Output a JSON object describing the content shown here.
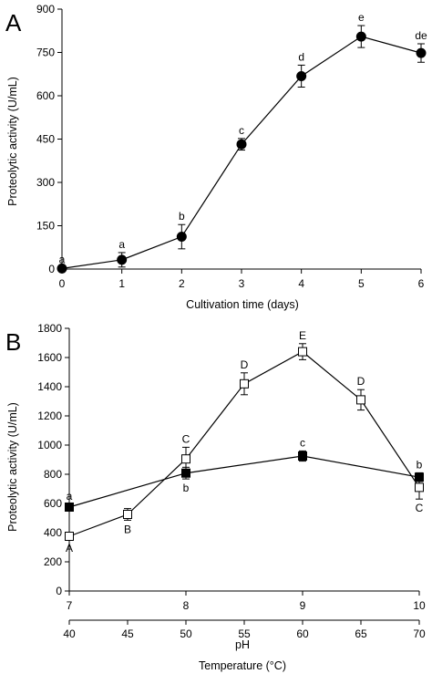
{
  "chart_data": [
    {
      "panel_label": "A",
      "type": "line",
      "xlabel": "Cultivation time (days)",
      "ylabel": "Proteolytic activity (U/mL)",
      "xlim": [
        0,
        6
      ],
      "ylim": [
        0,
        900
      ],
      "x_ticks": [
        "0",
        "1",
        "2",
        "3",
        "4",
        "5",
        "6"
      ],
      "y_ticks": [
        "0",
        "150",
        "300",
        "450",
        "600",
        "750",
        "900"
      ],
      "grid": false,
      "legend": "none",
      "series": [
        {
          "marker": "filled-circle",
          "color": "#000000",
          "points": [
            {
              "x": 0,
              "y": 2,
              "err": 3,
              "label": "a"
            },
            {
              "x": 1,
              "y": 32,
              "err": 25,
              "label": "a"
            },
            {
              "x": 2,
              "y": 112,
              "err": 42,
              "label": "b"
            },
            {
              "x": 3,
              "y": 432,
              "err": 20,
              "label": "c"
            },
            {
              "x": 4,
              "y": 668,
              "err": 38,
              "label": "d"
            },
            {
              "x": 5,
              "y": 805,
              "err": 38,
              "label": "e"
            },
            {
              "x": 6,
              "y": 748,
              "err": 32,
              "label": "de"
            }
          ]
        }
      ]
    },
    {
      "panel_label": "B",
      "type": "line",
      "xlabel": "pH",
      "xlabel2": "Temperature (°C)",
      "ylabel": "Proteolytic activity (U/mL)",
      "xlim": [
        7,
        10
      ],
      "x2lim": [
        40,
        70
      ],
      "ylim": [
        0,
        1800
      ],
      "x_ticks": [
        "7",
        "8",
        "9",
        "10"
      ],
      "x2_ticks": [
        "40",
        "45",
        "50",
        "55",
        "60",
        "65",
        "70"
      ],
      "y_ticks": [
        "0",
        "200",
        "400",
        "600",
        "800",
        "1000",
        "1200",
        "1400",
        "1600",
        "1800"
      ],
      "grid": false,
      "legend": "none",
      "series": [
        {
          "marker": "filled-square",
          "color": "#000000",
          "axis": "pH",
          "points": [
            {
              "x": 7,
              "y": 575,
              "err": 20,
              "label": "a",
              "label_pos": "above"
            },
            {
              "x": 8,
              "y": 808,
              "err": 40,
              "label": "b",
              "label_pos": "below"
            },
            {
              "x": 9,
              "y": 925,
              "err": 35,
              "label": "c",
              "label_pos": "above"
            },
            {
              "x": 10,
              "y": 780,
              "err": 30,
              "label": "b",
              "label_pos": "above"
            }
          ]
        },
        {
          "marker": "open-square",
          "color": "#000000",
          "axis": "temperature",
          "points": [
            {
              "x": 40,
              "y": 375,
              "err": 20,
              "label": "A",
              "label_pos": "below"
            },
            {
              "x": 45,
              "y": 525,
              "err": 40,
              "label": "B",
              "label_pos": "below"
            },
            {
              "x": 50,
              "y": 905,
              "err": 80,
              "label": "C",
              "label_pos": "above"
            },
            {
              "x": 55,
              "y": 1420,
              "err": 75,
              "label": "D",
              "label_pos": "above"
            },
            {
              "x": 60,
              "y": 1640,
              "err": 55,
              "label": "E",
              "label_pos": "above"
            },
            {
              "x": 65,
              "y": 1310,
              "err": 70,
              "label": "D",
              "label_pos": "above"
            },
            {
              "x": 70,
              "y": 710,
              "err": 80,
              "label": "C",
              "label_pos": "below"
            }
          ]
        }
      ]
    }
  ]
}
